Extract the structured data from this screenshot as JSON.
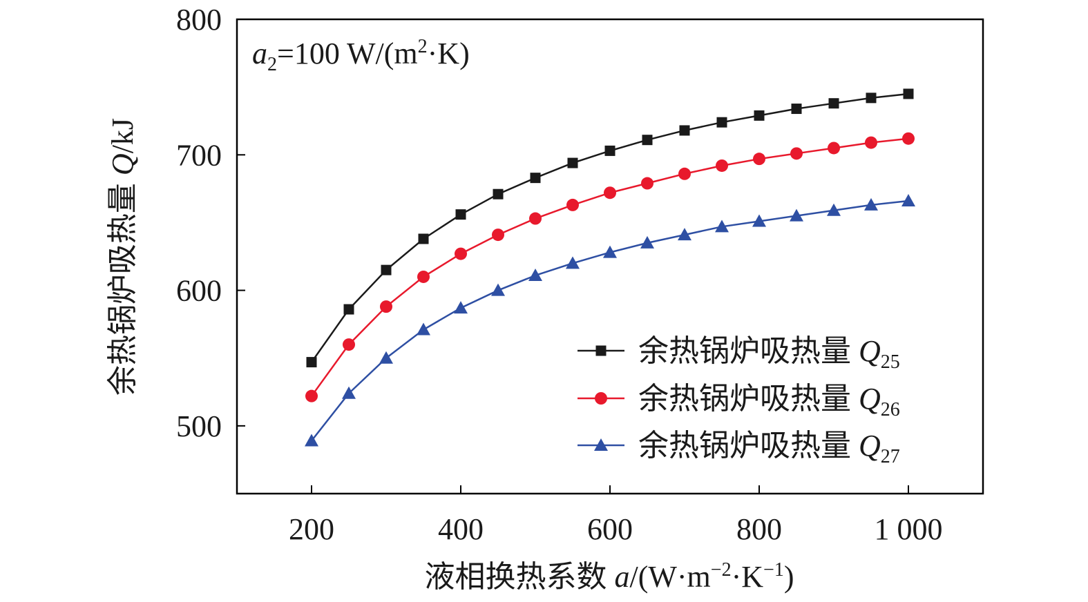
{
  "chart_data": {
    "type": "line",
    "xlabel_text": "液相换热系数 ",
    "xlabel_var": "a",
    "xlabel_unit": "/(W·m",
    "xlabel_exp1": "−2",
    "xlabel_mid": "·K",
    "xlabel_exp2": "−1",
    "xlabel_close": ")",
    "ylabel_text": "余热锅炉吸热量 ",
    "ylabel_var": "Q",
    "ylabel_unit": "/kJ",
    "annotation": {
      "var": "a",
      "sub": "2",
      "text": "=100 W/(m",
      "sup": "2",
      "tail": "·K)"
    },
    "xlim": [
      100,
      1100
    ],
    "ylim": [
      450,
      800
    ],
    "xticks": [
      200,
      400,
      600,
      800,
      1000
    ],
    "xtick_labels": [
      "200",
      "400",
      "600",
      "800",
      "1 000"
    ],
    "yticks": [
      500,
      600,
      700,
      800
    ],
    "ytick_labels": [
      "500",
      "600",
      "700",
      "800"
    ],
    "legend_position": "bottom-right",
    "x": [
      200,
      250,
      300,
      350,
      400,
      450,
      500,
      550,
      600,
      650,
      700,
      750,
      800,
      850,
      900,
      950,
      1000
    ],
    "series": [
      {
        "name": "余热锅炉吸热量 Q25",
        "label": "余热锅炉吸热量 ",
        "var": "Q",
        "sub": "25",
        "color": "#1a1a1a",
        "marker": "square",
        "values": [
          547,
          586,
          615,
          638,
          656,
          671,
          683,
          694,
          703,
          711,
          718,
          724,
          729,
          734,
          738,
          742,
          745
        ]
      },
      {
        "name": "余热锅炉吸热量 Q26",
        "label": "余热锅炉吸热量 ",
        "var": "Q",
        "sub": "26",
        "color": "#e8192c",
        "marker": "circle",
        "values": [
          522,
          560,
          588,
          610,
          627,
          641,
          653,
          663,
          672,
          679,
          686,
          692,
          697,
          701,
          705,
          709,
          712
        ]
      },
      {
        "name": "余热锅炉吸热量 Q27",
        "label": "余热锅炉吸热量 ",
        "var": "Q",
        "sub": "27",
        "color": "#2e4fa3",
        "marker": "triangle",
        "values": [
          489,
          524,
          550,
          571,
          587,
          600,
          611,
          620,
          628,
          635,
          641,
          647,
          651,
          655,
          659,
          663,
          666
        ]
      }
    ]
  }
}
